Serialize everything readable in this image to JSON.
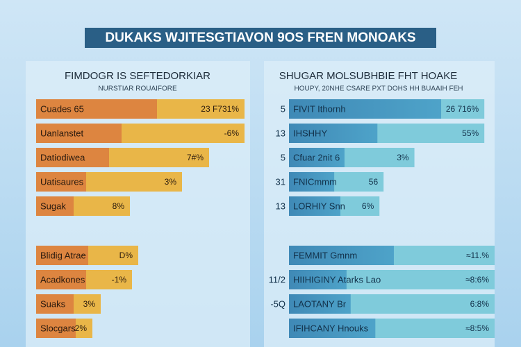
{
  "header": {
    "title": "DUKAKS WJITESGTIAVON 9OS FREN MONOAKS"
  },
  "left_panel": {
    "title": "FIMDOGR IS SEFTEDORKIAR",
    "subtitle": "NURSTIAR ROUAIFORE",
    "groups": [
      [
        {
          "label": "Cuades 65",
          "value_label": "23 F731%",
          "highlight": 58,
          "bar": 100
        },
        {
          "label": "Uanlanstet",
          "value_label": "-6%",
          "highlight": 41,
          "bar": 100
        },
        {
          "label": "Datiodiwea",
          "value_label": "7#%",
          "highlight": 35,
          "bar": 83
        },
        {
          "label": "Uatisaures",
          "value_label": "3%",
          "highlight": 24,
          "bar": 70
        },
        {
          "label": "Sugak",
          "value_label": "8%",
          "highlight": 18,
          "bar": 45
        }
      ],
      [
        {
          "label": "Blidig Atrae",
          "value_label": "D%",
          "highlight": 25,
          "bar": 49
        },
        {
          "label": "Acadkones",
          "value_label": "-1%",
          "highlight": 24,
          "bar": 46
        },
        {
          "label": "Suaks",
          "value_label": "3%",
          "highlight": 18,
          "bar": 31
        },
        {
          "label": "Slocgars",
          "value_label": "2%",
          "highlight": 19,
          "bar": 27
        }
      ]
    ]
  },
  "right_panel": {
    "title": "SHUGAR MOLSUBHBIE FHT HOAKE",
    "subtitle": "HOUPY, 20NHE CSARE PXT DOHS HH BUAAIH FEH",
    "groups": [
      [
        {
          "number": "5",
          "label": "FIVIT Ithornh",
          "value_label": "26 716%",
          "highlight": 74,
          "bar": 95
        },
        {
          "number": "13",
          "label": "IHSHHY",
          "value_label": "55%",
          "highlight": 43,
          "bar": 95
        },
        {
          "number": "5",
          "label": "Cfuar 2nit 6",
          "value_label": "3%",
          "highlight": 27,
          "bar": 61
        },
        {
          "number": "31",
          "label": "FNICmmm",
          "value_label": "56",
          "highlight": 22,
          "bar": 46
        },
        {
          "number": "13",
          "label": "LORHIY Snn",
          "value_label": "6%",
          "highlight": 25,
          "bar": 44
        }
      ],
      [
        {
          "label": "FEMMIT Gmnm",
          "value_label": "≈11.%",
          "highlight": 51,
          "bar": 100
        },
        {
          "number": "11/2",
          "label": "HIIHIGINY Atarks Lao",
          "value_label": "≈8:6%",
          "highlight": 28,
          "bar": 100
        },
        {
          "number": "-5Q",
          "label": "LAOTANY Br",
          "value_label": "6:8%",
          "highlight": 30,
          "bar": 100
        },
        {
          "label": "IFIHCANY Hnouks",
          "value_label": "≈8:5%",
          "highlight": 42,
          "bar": 100
        }
      ]
    ]
  }
}
